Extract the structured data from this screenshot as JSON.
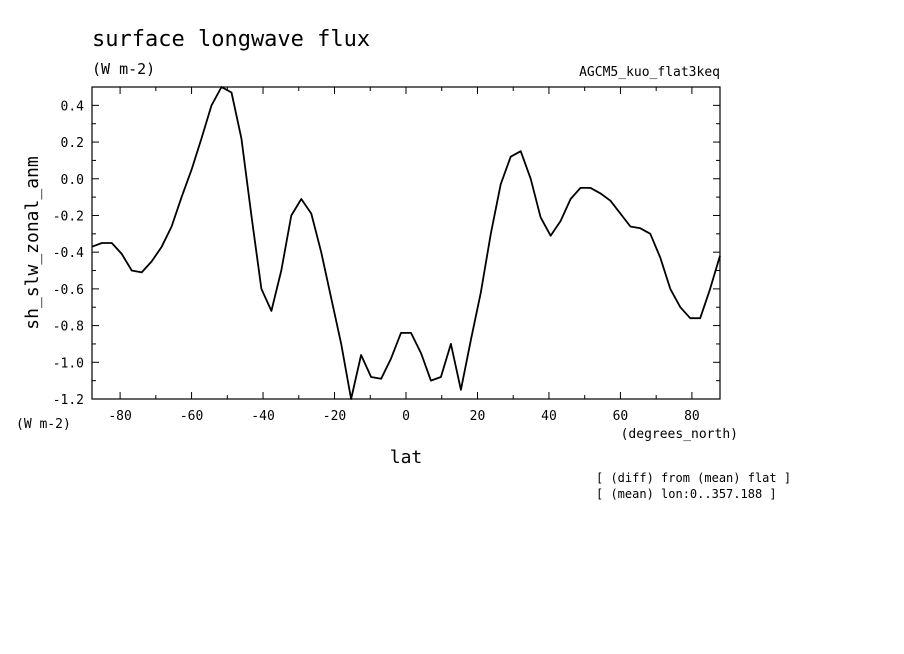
{
  "chart_data": {
    "type": "line",
    "title": "surface longwave flux",
    "title_units": "(W m-2)",
    "dataset": "AGCM5_kuo_flat3keq",
    "ylabel": "sh_slw_zonal_anm",
    "y_units": "(W m-2)",
    "xlabel": "lat",
    "x_units": "(degrees_north)",
    "notes": [
      "[ (diff) from (mean) flat ]",
      "[ (mean) lon:0..357.188 ]"
    ],
    "xlim": [
      -87.86,
      87.86
    ],
    "ylim": [
      -1.2,
      0.5
    ],
    "x_ticks": [
      -80,
      -60,
      -40,
      -20,
      0,
      20,
      40,
      60,
      80
    ],
    "x_tick_labels": [
      "-80",
      "-60",
      "-40",
      "-20",
      "0",
      "20",
      "40",
      "60",
      "80"
    ],
    "y_ticks": [
      -1.2,
      -1.0,
      -0.8,
      -0.6,
      -0.4,
      -0.2,
      0.0,
      0.2,
      0.4
    ],
    "y_tick_labels": [
      "-1.2",
      "-1.0",
      "-0.8",
      "-0.6",
      "-0.4",
      "-0.2",
      "0.0",
      "0.2",
      "0.4"
    ],
    "grid": false,
    "series": [
      {
        "x": [
          -87.86,
          -85.1,
          -82.31,
          -79.53,
          -76.74,
          -73.95,
          -71.16,
          -68.37,
          -65.58,
          -62.79,
          -60.0,
          -57.21,
          -54.42,
          -51.63,
          -48.84,
          -46.05,
          -43.26,
          -40.47,
          -37.67,
          -34.88,
          -32.09,
          -29.3,
          -26.51,
          -23.72,
          -20.93,
          -18.14,
          -15.35,
          -12.56,
          -9.77,
          -6.98,
          -4.19,
          -1.4,
          1.4,
          4.19,
          6.98,
          9.77,
          12.56,
          15.35,
          18.14,
          20.93,
          23.72,
          26.51,
          29.3,
          32.09,
          34.88,
          37.67,
          40.47,
          43.26,
          46.05,
          48.84,
          51.63,
          54.42,
          57.21,
          60.0,
          62.79,
          65.58,
          68.37,
          71.16,
          73.95,
          76.74,
          79.53,
          82.31,
          85.1,
          87.86
        ],
        "y": [
          -0.37,
          -0.35,
          -0.35,
          -0.41,
          -0.5,
          -0.51,
          -0.45,
          -0.37,
          -0.26,
          -0.1,
          0.05,
          0.22,
          0.4,
          0.5,
          0.47,
          0.22,
          -0.2,
          -0.6,
          -0.72,
          -0.5,
          -0.2,
          -0.11,
          -0.19,
          -0.4,
          -0.65,
          -0.9,
          -1.2,
          -0.96,
          -1.08,
          -1.09,
          -0.98,
          -0.84,
          -0.84,
          -0.95,
          -1.1,
          -1.08,
          -0.9,
          -1.15,
          -0.88,
          -0.62,
          -0.3,
          -0.03,
          0.12,
          0.15,
          0.0,
          -0.21,
          -0.31,
          -0.23,
          -0.11,
          -0.05,
          -0.05,
          -0.08,
          -0.12,
          -0.19,
          -0.26,
          -0.27,
          -0.3,
          -0.43,
          -0.6,
          -0.7,
          -0.76,
          -0.76,
          -0.6,
          -0.42
        ]
      }
    ]
  }
}
